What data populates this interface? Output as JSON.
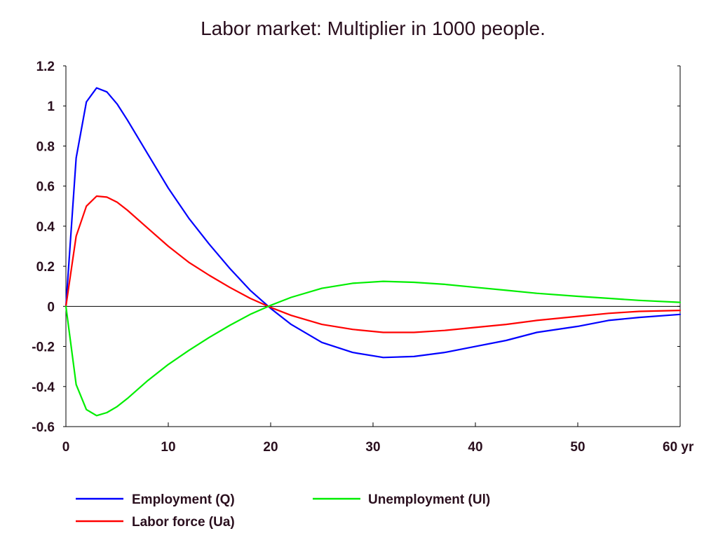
{
  "chart_data": {
    "type": "line",
    "title": "Labor market: Multiplier in 1000 people.",
    "xlim": [
      0,
      60
    ],
    "ylim": [
      -0.6,
      1.2
    ],
    "x_ticks": [
      {
        "value": 0,
        "label": "0"
      },
      {
        "value": 10,
        "label": "10"
      },
      {
        "value": 20,
        "label": "20"
      },
      {
        "value": 30,
        "label": "30"
      },
      {
        "value": 40,
        "label": "40"
      },
      {
        "value": 50,
        "label": "50"
      },
      {
        "value": 60,
        "label": "60 yr"
      }
    ],
    "y_ticks": [
      {
        "value": 1.2,
        "label": "1.2"
      },
      {
        "value": 1.0,
        "label": "1"
      },
      {
        "value": 0.8,
        "label": "0.8"
      },
      {
        "value": 0.6,
        "label": "0.6"
      },
      {
        "value": 0.4,
        "label": "0.4"
      },
      {
        "value": 0.2,
        "label": "0.2"
      },
      {
        "value": 0.0,
        "label": "0"
      },
      {
        "value": -0.2,
        "label": "-0.2"
      },
      {
        "value": -0.4,
        "label": "-0.4"
      },
      {
        "value": -0.6,
        "label": "-0.6"
      }
    ],
    "grid": false,
    "legend_position": "bottom",
    "x": [
      0,
      1,
      2,
      3,
      4,
      5,
      6,
      8,
      10,
      12,
      14,
      16,
      18,
      20,
      22,
      25,
      28,
      31,
      34,
      37,
      40,
      43,
      46,
      50,
      53,
      56,
      60
    ],
    "series": [
      {
        "name": "Employment (Q)",
        "color": "#0000ff",
        "values": [
          0.0,
          0.74,
          1.02,
          1.09,
          1.07,
          1.01,
          0.93,
          0.76,
          0.59,
          0.44,
          0.31,
          0.19,
          0.08,
          -0.01,
          -0.09,
          -0.18,
          -0.23,
          -0.255,
          -0.25,
          -0.23,
          -0.2,
          -0.17,
          -0.13,
          -0.1,
          -0.07,
          -0.055,
          -0.04
        ]
      },
      {
        "name": "Labor force (Ua)",
        "color": "#ff0000",
        "values": [
          0.0,
          0.35,
          0.5,
          0.55,
          0.545,
          0.52,
          0.48,
          0.39,
          0.3,
          0.22,
          0.155,
          0.095,
          0.04,
          -0.005,
          -0.045,
          -0.09,
          -0.115,
          -0.13,
          -0.13,
          -0.12,
          -0.105,
          -0.09,
          -0.07,
          -0.05,
          -0.035,
          -0.025,
          -0.02
        ]
      },
      {
        "name": "Unemployment (Ul)",
        "color": "#00ee00",
        "values": [
          0.0,
          -0.39,
          -0.515,
          -0.545,
          -0.53,
          -0.5,
          -0.46,
          -0.37,
          -0.29,
          -0.22,
          -0.155,
          -0.095,
          -0.04,
          0.005,
          0.045,
          0.09,
          0.115,
          0.125,
          0.12,
          0.11,
          0.095,
          0.08,
          0.065,
          0.05,
          0.04,
          0.03,
          0.02
        ]
      }
    ]
  }
}
